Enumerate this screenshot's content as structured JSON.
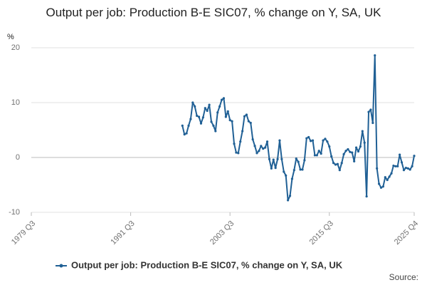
{
  "chart_data": {
    "type": "line",
    "title": "Output per job: Production B-E SIC07, % change on Y, SA, UK",
    "y_label": "%",
    "source": "Source:",
    "categories": [
      "1979 Q3",
      null,
      null,
      null,
      null,
      null,
      null,
      null,
      null,
      null,
      null,
      null,
      null,
      null,
      null,
      null,
      null,
      null,
      null,
      null,
      null,
      null,
      null,
      null,
      null,
      null,
      null,
      null,
      null,
      null,
      null,
      null,
      null,
      null,
      null,
      null,
      null,
      null,
      null,
      null,
      null,
      null,
      null,
      null,
      null,
      null,
      null,
      null,
      "1991 Q3",
      null,
      null,
      null,
      null,
      null,
      null,
      null,
      null,
      null,
      null,
      null,
      null,
      null,
      null,
      null,
      null,
      null,
      null,
      null,
      null,
      null,
      null,
      null,
      null,
      null,
      null,
      null,
      null,
      null,
      null,
      null,
      null,
      null,
      null,
      null,
      null,
      null,
      null,
      null,
      null,
      null,
      null,
      null,
      null,
      null,
      null,
      null,
      "2003 Q3",
      null,
      null,
      null,
      null,
      null,
      null,
      null,
      null,
      null,
      null,
      null,
      null,
      null,
      null,
      null,
      null,
      null,
      null,
      null,
      null,
      null,
      null,
      null,
      null,
      null,
      null,
      null,
      null,
      null,
      null,
      null,
      null,
      null,
      null,
      null,
      null,
      null,
      null,
      null,
      null,
      null,
      null,
      null,
      null,
      null,
      null,
      null,
      "2015 Q3",
      null,
      null,
      null,
      null,
      null,
      null,
      null,
      null,
      null,
      null,
      null,
      null,
      null,
      null,
      null,
      null,
      null,
      null,
      null,
      null,
      null,
      null,
      null,
      null,
      null,
      null,
      null,
      null,
      null,
      null,
      null,
      null,
      null,
      null,
      null,
      null,
      null,
      null,
      null,
      null,
      "2025 Q4"
    ],
    "series": [
      {
        "name": "Output per job: Production B-E SIC07, % change on Y, SA, UK",
        "color": "#206095",
        "values": [
          null,
          null,
          null,
          null,
          null,
          null,
          null,
          null,
          null,
          null,
          null,
          null,
          null,
          null,
          null,
          null,
          null,
          null,
          null,
          null,
          null,
          null,
          null,
          null,
          null,
          null,
          null,
          null,
          null,
          null,
          null,
          null,
          null,
          null,
          null,
          null,
          null,
          null,
          null,
          null,
          null,
          null,
          null,
          null,
          null,
          null,
          null,
          null,
          null,
          null,
          null,
          null,
          null,
          null,
          null,
          null,
          null,
          null,
          null,
          null,
          null,
          null,
          null,
          null,
          null,
          null,
          null,
          null,
          null,
          null,
          null,
          null,
          null,
          5.8,
          4.2,
          4.4,
          5.8,
          7.0,
          10.0,
          9.3,
          7.6,
          7.4,
          6.2,
          7.3,
          9.0,
          8.5,
          9.6,
          6.5,
          5.8,
          4.8,
          8.2,
          9.3,
          10.5,
          10.8,
          7.4,
          8.4,
          6.8,
          6.6,
          2.5,
          0.9,
          0.8,
          2.9,
          4.8,
          7.5,
          7.8,
          6.6,
          6.3,
          3.3,
          2.1,
          0.8,
          1.2,
          2.1,
          1.6,
          1.8,
          2.9,
          -0.3,
          -2.0,
          -0.4,
          -1.9,
          -0.3,
          3.1,
          -0.3,
          -2.6,
          -3.3,
          -7.8,
          -7.0,
          -3.9,
          -2.3,
          -0.2,
          -0.8,
          -2.2,
          -2.2,
          -0.5,
          3.5,
          3.7,
          3.0,
          3.1,
          0.4,
          0.4,
          1.2,
          0.7,
          3.1,
          3.4,
          2.9,
          2.0,
          0.2,
          -1.0,
          -1.3,
          -1.2,
          -2.3,
          -1.0,
          0.6,
          1.2,
          1.5,
          1.0,
          0.9,
          -0.7,
          1.8,
          1.1,
          2.0,
          4.8,
          2.7,
          -7.1,
          8.3,
          8.7,
          6.3,
          18.6,
          -2.0,
          -4.8,
          -5.5,
          -5.3,
          -3.6,
          -4.1,
          -3.5,
          -2.9,
          -1.5,
          -1.6,
          -1.6,
          0.5,
          -0.9,
          -2.3,
          -1.9,
          -2.0,
          -2.2,
          -1.6,
          0.3
        ]
      }
    ],
    "ylim": [
      -10,
      20
    ],
    "yticks": [
      -10,
      0,
      10,
      20
    ],
    "grid": true
  }
}
